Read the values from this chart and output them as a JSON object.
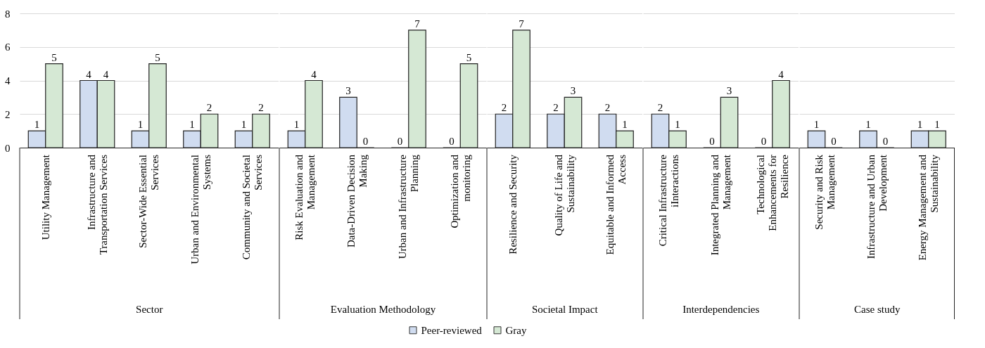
{
  "chart_data": [
    {
      "type": "bar",
      "xlabel": "Sector",
      "categories": [
        "Utility Management",
        "Infrastructure and Transportation Services",
        "Sector-Wide Essential Services",
        "Urban and Environmental Systems",
        "Community and Societal Services"
      ],
      "series": [
        {
          "name": "Peer-reviewed",
          "color": "#d0dcf0",
          "values": [
            1,
            4,
            1,
            1,
            1
          ]
        },
        {
          "name": "Gray",
          "color": "#d5e8d4",
          "values": [
            5,
            4,
            5,
            2,
            2
          ]
        }
      ],
      "ylim": [
        0,
        8
      ],
      "yticks": [
        0,
        2,
        4,
        6,
        8
      ],
      "grid": "y",
      "legend": "bottom",
      "data_labels": true
    },
    {
      "type": "bar",
      "xlabel": "Evaluation Methodology",
      "categories": [
        "Risk Evaluation and Management",
        "Data-Driven Decision Making",
        "Urban and Infrastructure Planning",
        "Optimization and monitoring"
      ],
      "series": [
        {
          "name": "Peer-reviewed",
          "color": "#d0dcf0",
          "values": [
            1,
            3,
            0,
            0
          ]
        },
        {
          "name": "Gray",
          "color": "#d5e8d4",
          "values": [
            4,
            0,
            7,
            5
          ]
        }
      ],
      "ylim": [
        0,
        8
      ],
      "yticks": [
        0,
        2,
        4,
        6,
        8
      ],
      "grid": "y",
      "tick_labels": "x",
      "data_labels": true
    },
    {
      "type": "bar",
      "xlabel": "Societal Impact",
      "categories": [
        "Resilience and Security",
        "Quality of Life and Sustainability",
        "Equitable and Informed Access"
      ],
      "series": [
        {
          "name": "Peer-reviewed",
          "color": "#d0dcf0",
          "values": [
            2,
            2,
            2
          ]
        },
        {
          "name": "Gray",
          "color": "#d5e8d4",
          "values": [
            7,
            3,
            1
          ]
        }
      ],
      "ylim": [
        0,
        8
      ],
      "yticks": [
        0,
        2,
        4,
        6,
        8
      ],
      "grid": "y",
      "tick_labels": "x",
      "data_labels": true
    },
    {
      "type": "bar",
      "xlabel": "Interdependencies",
      "categories": [
        "Critical Infrastructure iInteractions",
        "Integrated Planning and Management",
        "Technological Enhancements for Resilience"
      ],
      "series": [
        {
          "name": "Peer-reviewed",
          "color": "#d0dcf0",
          "values": [
            2,
            0,
            0
          ]
        },
        {
          "name": "Gray",
          "color": "#d5e8d4",
          "values": [
            1,
            3,
            4
          ]
        }
      ],
      "ylim": [
        0,
        8
      ],
      "yticks": [
        0,
        2,
        4,
        6,
        8
      ],
      "grid": "y",
      "tick_labels": "x",
      "data_labels": true
    },
    {
      "type": "bar",
      "xlabel": "Case study",
      "categories": [
        "Security and Risk Management",
        "Infrastructure and Urban Development",
        "Energy Management and Sustainability"
      ],
      "series": [
        {
          "name": "Peer-reviewed",
          "color": "#d0dcf0",
          "values": [
            1,
            1,
            1
          ]
        },
        {
          "name": "Gray",
          "color": "#d5e8d4",
          "values": [
            0,
            0,
            1
          ]
        }
      ],
      "ylim": [
        0,
        8
      ],
      "yticks": [
        0,
        2,
        4,
        6,
        8
      ],
      "grid": "y",
      "tick_labels": "x",
      "data_labels": true
    }
  ]
}
